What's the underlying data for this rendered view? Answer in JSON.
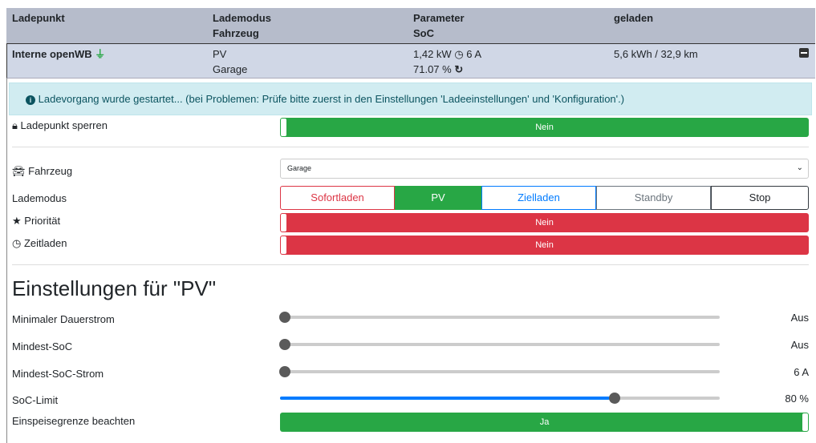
{
  "header": {
    "col1": "Ladepunkt",
    "col2a": "Lademodus",
    "col2b": "Fahrzeug",
    "col3a": "Parameter",
    "col3b": "SoC",
    "col4": "geladen"
  },
  "chargepoint": {
    "name": "Interne openWB",
    "mode": "PV",
    "vehicle": "Garage",
    "power": "1,42 kW",
    "current": "6 A",
    "soc": "71.07 %",
    "charged": "5,6 kWh / 32,9 km",
    "plug_icon": "plug-icon",
    "collapse_icon": "minus-square-icon"
  },
  "alert": {
    "text": "Ladevorgang wurde gestartet... (bei Problemen: Prüfe bitte zuerst in den Einstellungen 'Ladeeinstellungen' und 'Konfiguration'.)"
  },
  "lock": {
    "label": "Ladepunkt sperren",
    "value": "Nein"
  },
  "vehicle": {
    "label": "Fahrzeug",
    "selected": "Garage"
  },
  "mode": {
    "label": "Lademodus",
    "options": [
      "Sofortladen",
      "PV",
      "Zielladen",
      "Standby",
      "Stop"
    ],
    "active": "PV"
  },
  "priority": {
    "label": "Priorität",
    "value": "Nein"
  },
  "timed": {
    "label": "Zeitladen",
    "value": "Nein"
  },
  "settings": {
    "title": "Einstellungen für \"PV\"",
    "sliders": [
      {
        "label": "Minimaler Dauerstrom",
        "value": "Aus",
        "fraction": 0
      },
      {
        "label": "Mindest-SoC",
        "value": "Aus",
        "fraction": 0
      },
      {
        "label": "Mindest-SoC-Strom",
        "value": "6 A",
        "fraction": 0
      },
      {
        "label": "SoC-Limit",
        "value": "80 %",
        "fraction": 0.75
      }
    ],
    "feed_in": {
      "label": "Einspeisegrenze beachten",
      "value": "Ja"
    }
  },
  "colors": {
    "green": "#28a745",
    "red": "#dc3545",
    "blue": "#007bff",
    "info_bg": "#d1ecf1"
  }
}
